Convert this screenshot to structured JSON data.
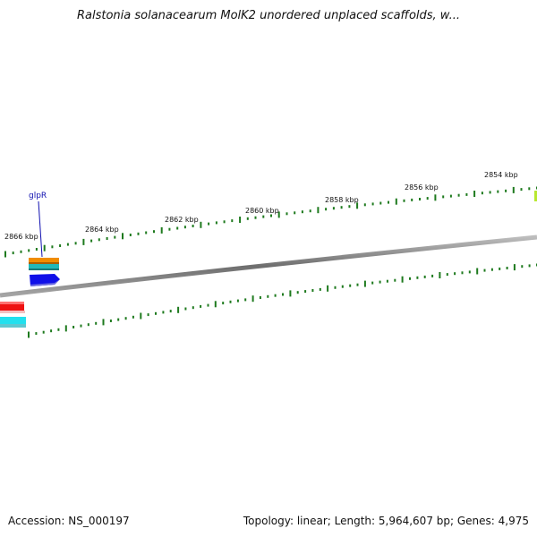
{
  "title": "Ralstonia solanacearum MolK2 unordered unplaced scaffolds, w...",
  "footer": {
    "accession": "Accession: NS_000197",
    "summary": "Topology: linear; Length: 5,964,607 bp; Genes: 4,975"
  },
  "scale": {
    "unit": "kbp",
    "labels": [
      "2866 kbp",
      "2864 kbp",
      "2862 kbp",
      "2860 kbp",
      "2858 kbp",
      "2856 kbp",
      "2854 kbp"
    ]
  },
  "genes": [
    {
      "label": "glpR"
    }
  ],
  "colors": {
    "backbone": "#7a7a7a",
    "ticks": "#1e7a1e",
    "gene_orange": "#f08c00",
    "gene_teal": "#20b8b8",
    "gene_blue": "#1010e8",
    "gene_red": "#ee1111",
    "gene_cyan": "#22e0ee",
    "gene_lime": "#b8e830"
  }
}
